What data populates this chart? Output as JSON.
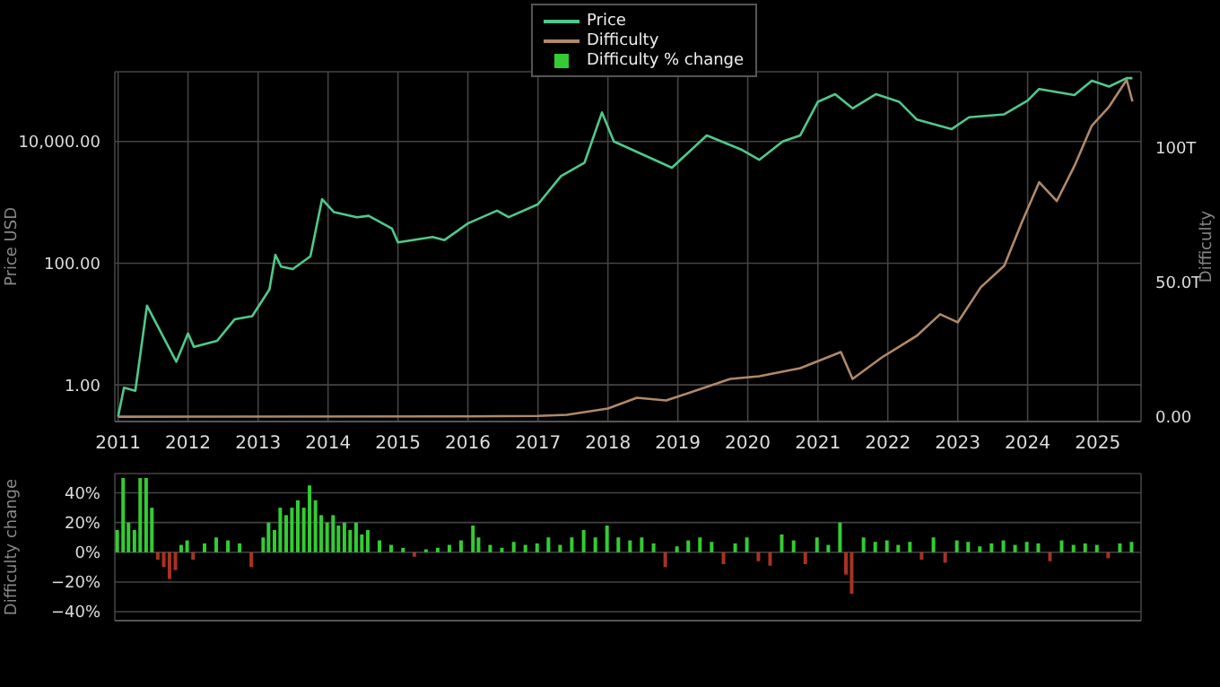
{
  "chart_data": [
    {
      "type": "line",
      "xlabel": null,
      "ylabel": "Price USD",
      "y2label": "Difficulty",
      "log": "y",
      "grid": true,
      "legend": "top",
      "marker": "none",
      "xlim": [
        "2010-12-15",
        "2025-08-15"
      ],
      "xticks": [
        "2011",
        "2012",
        "2013",
        "2014",
        "2015",
        "2016",
        "2017",
        "2018",
        "2019",
        "2020",
        "2021",
        "2022",
        "2023",
        "2024",
        "2025"
      ],
      "ylim": [
        0.25,
        140000
      ],
      "yticks": [
        {
          "value": 1,
          "label": "1.00"
        },
        {
          "value": 100,
          "label": "100.00"
        },
        {
          "value": 10000,
          "label": "10,000.00"
        }
      ],
      "y2lim": [
        -1.8,
        128
      ],
      "y2ticks": [
        {
          "value": 0,
          "label": "0.00"
        },
        {
          "value": 50,
          "label": "50.0T"
        },
        {
          "value": 100,
          "label": "100T"
        }
      ],
      "series": [
        {
          "name": "Price",
          "color": "#4fc98a",
          "x": [
            "2011-01",
            "2011-02",
            "2011-04",
            "2011-06",
            "2011-11",
            "2012-01",
            "2012-02",
            "2012-06",
            "2012-09",
            "2012-12",
            "2013-03",
            "2013-04",
            "2013-05",
            "2013-07",
            "2013-10",
            "2013-12",
            "2014-02",
            "2014-06",
            "2014-08",
            "2014-12",
            "2015-01",
            "2015-07",
            "2015-09",
            "2016-01",
            "2016-06",
            "2016-08",
            "2017-01",
            "2017-05",
            "2017-09",
            "2017-12",
            "2018-02",
            "2018-12",
            "2019-06",
            "2019-12",
            "2020-03",
            "2020-07",
            "2020-10",
            "2021-01",
            "2021-04",
            "2021-07",
            "2021-11",
            "2022-03",
            "2022-06",
            "2022-12",
            "2023-03",
            "2023-09",
            "2024-01",
            "2024-03",
            "2024-09",
            "2024-12",
            "2025-03",
            "2025-06",
            "2025-07"
          ],
          "values": [
            0.3,
            0.9,
            0.8,
            20,
            2.4,
            7,
            4.2,
            5.3,
            12,
            13.5,
            37,
            137,
            88,
            80,
            130,
            1130,
            690,
            570,
            600,
            370,
            220,
            270,
            240,
            450,
            730,
            570,
            930,
            2700,
            4500,
            30000,
            10000,
            3700,
            12600,
            7300,
            5000,
            10000,
            12600,
            45000,
            60000,
            35000,
            60000,
            45000,
            23000,
            16000,
            25000,
            28000,
            47000,
            73000,
            58000,
            100000,
            80000,
            110000,
            110000
          ]
        },
        {
          "name": "Difficulty",
          "color": "#b08968",
          "axis": "y2",
          "x": [
            "2011-01",
            "2016-01",
            "2017-01",
            "2017-06",
            "2018-01",
            "2018-06",
            "2018-11",
            "2019-10",
            "2020-03",
            "2020-10",
            "2021-05",
            "2021-07",
            "2021-12",
            "2022-06",
            "2022-10",
            "2023-01",
            "2023-05",
            "2023-09",
            "2023-12",
            "2024-03",
            "2024-06",
            "2024-09",
            "2024-12",
            "2025-03",
            "2025-06",
            "2025-07"
          ],
          "values": [
            0,
            0.1,
            0.3,
            0.7,
            3,
            7,
            6,
            14,
            15,
            18,
            24,
            14,
            22,
            30,
            38,
            35,
            48,
            56,
            72,
            87,
            80,
            93,
            108,
            115,
            125,
            117
          ]
        }
      ]
    },
    {
      "type": "bar",
      "ylabel": "Difficulty change",
      "grid": true,
      "legend": "top",
      "tick_labels": "y",
      "xlim": [
        "2010-12-15",
        "2025-08-15"
      ],
      "xticks": [
        "2011",
        "2012",
        "2013",
        "2014",
        "2015",
        "2016",
        "2017",
        "2018",
        "2019",
        "2020",
        "2021",
        "2022",
        "2023",
        "2024",
        "2025"
      ],
      "ylim": [
        -46,
        53
      ],
      "yticks": [
        {
          "value": -40,
          "label": "−40%"
        },
        {
          "value": -20,
          "label": "−20%"
        },
        {
          "value": 0,
          "label": "0%"
        },
        {
          "value": 20,
          "label": "20%"
        },
        {
          "value": 40,
          "label": "40%"
        }
      ],
      "series": [
        {
          "name": "Difficulty % change",
          "color": "#33cc33",
          "x": [
            "2011-01",
            "2011-02",
            "2011-03",
            "2011-04",
            "2011-05",
            "2011-06",
            "2011-07",
            "2011-08",
            "2011-09",
            "2011-10",
            "2011-11",
            "2011-12",
            "2012-01",
            "2012-02",
            "2012-04",
            "2012-06",
            "2012-08",
            "2012-10",
            "2012-12",
            "2013-02",
            "2013-03",
            "2013-04",
            "2013-05",
            "2013-06",
            "2013-07",
            "2013-08",
            "2013-09",
            "2013-10",
            "2013-11",
            "2013-12",
            "2014-01",
            "2014-02",
            "2014-03",
            "2014-04",
            "2014-05",
            "2014-06",
            "2014-07",
            "2014-08",
            "2014-10",
            "2014-12",
            "2015-02",
            "2015-04",
            "2015-06",
            "2015-08",
            "2015-10",
            "2015-12",
            "2016-02",
            "2016-03",
            "2016-05",
            "2016-07",
            "2016-09",
            "2016-11",
            "2017-01",
            "2017-03",
            "2017-05",
            "2017-07",
            "2017-09",
            "2017-11",
            "2018-01",
            "2018-03",
            "2018-05",
            "2018-07",
            "2018-09",
            "2018-11",
            "2019-01",
            "2019-03",
            "2019-05",
            "2019-07",
            "2019-09",
            "2019-11",
            "2020-01",
            "2020-03",
            "2020-05",
            "2020-07",
            "2020-09",
            "2020-11",
            "2021-01",
            "2021-03",
            "2021-05",
            "2021-06",
            "2021-07",
            "2021-09",
            "2021-11",
            "2022-01",
            "2022-03",
            "2022-05",
            "2022-07",
            "2022-09",
            "2022-11",
            "2023-01",
            "2023-03",
            "2023-05",
            "2023-07",
            "2023-09",
            "2023-11",
            "2024-01",
            "2024-03",
            "2024-05",
            "2024-07",
            "2024-09",
            "2024-11",
            "2025-01",
            "2025-03",
            "2025-05",
            "2025-07"
          ],
          "values": [
            15,
            50,
            20,
            15,
            50,
            50,
            30,
            -5,
            -10,
            -18,
            -12,
            5,
            8,
            -5,
            6,
            10,
            8,
            6,
            -10,
            10,
            20,
            15,
            30,
            25,
            30,
            35,
            30,
            45,
            35,
            25,
            20,
            25,
            18,
            20,
            15,
            20,
            12,
            15,
            8,
            5,
            3,
            -3,
            2,
            3,
            5,
            8,
            18,
            10,
            5,
            3,
            7,
            5,
            6,
            10,
            5,
            10,
            15,
            10,
            18,
            10,
            8,
            10,
            6,
            -10,
            4,
            8,
            10,
            7,
            -8,
            6,
            10,
            -6,
            -9,
            12,
            8,
            -8,
            10,
            5,
            20,
            -15,
            -28,
            10,
            7,
            8,
            5,
            7,
            -5,
            10,
            -7,
            8,
            7,
            4,
            6,
            8,
            5,
            7,
            6,
            -6,
            8,
            5,
            6,
            5,
            -4,
            6,
            7
          ],
          "colors": [
            "#33cc33",
            "#33cc33",
            "#33cc33",
            "#33cc33",
            "#33cc33",
            "#33cc33",
            "#33cc33",
            "#a83222",
            "#a83222",
            "#a83222",
            "#a83222",
            "#33cc33",
            "#33cc33",
            "#a83222",
            "#33cc33",
            "#33cc33",
            "#33cc33",
            "#33cc33",
            "#a83222",
            "#33cc33",
            "#33cc33",
            "#33cc33",
            "#33cc33",
            "#33cc33",
            "#33cc33",
            "#33cc33",
            "#33cc33",
            "#33cc33",
            "#33cc33",
            "#33cc33",
            "#33cc33",
            "#33cc33",
            "#33cc33",
            "#33cc33",
            "#33cc33",
            "#33cc33",
            "#33cc33",
            "#33cc33",
            "#33cc33",
            "#33cc33",
            "#33cc33",
            "#a83222",
            "#33cc33",
            "#33cc33",
            "#33cc33",
            "#33cc33",
            "#33cc33",
            "#33cc33",
            "#33cc33",
            "#33cc33",
            "#33cc33",
            "#33cc33",
            "#33cc33",
            "#33cc33",
            "#33cc33",
            "#33cc33",
            "#33cc33",
            "#33cc33",
            "#33cc33",
            "#33cc33",
            "#33cc33",
            "#33cc33",
            "#33cc33",
            "#a83222",
            "#33cc33",
            "#33cc33",
            "#33cc33",
            "#33cc33",
            "#a83222",
            "#33cc33",
            "#33cc33",
            "#a83222",
            "#a83222",
            "#33cc33",
            "#33cc33",
            "#a83222",
            "#33cc33",
            "#33cc33",
            "#33cc33",
            "#a83222",
            "#a83222",
            "#33cc33",
            "#33cc33",
            "#33cc33",
            "#33cc33",
            "#33cc33",
            "#a83222",
            "#33cc33",
            "#a83222",
            "#33cc33",
            "#33cc33",
            "#33cc33",
            "#33cc33",
            "#33cc33",
            "#33cc33",
            "#33cc33",
            "#33cc33",
            "#a83222",
            "#33cc33",
            "#33cc33",
            "#33cc33",
            "#33cc33",
            "#a83222",
            "#33cc33",
            "#33cc33"
          ]
        }
      ]
    }
  ]
}
